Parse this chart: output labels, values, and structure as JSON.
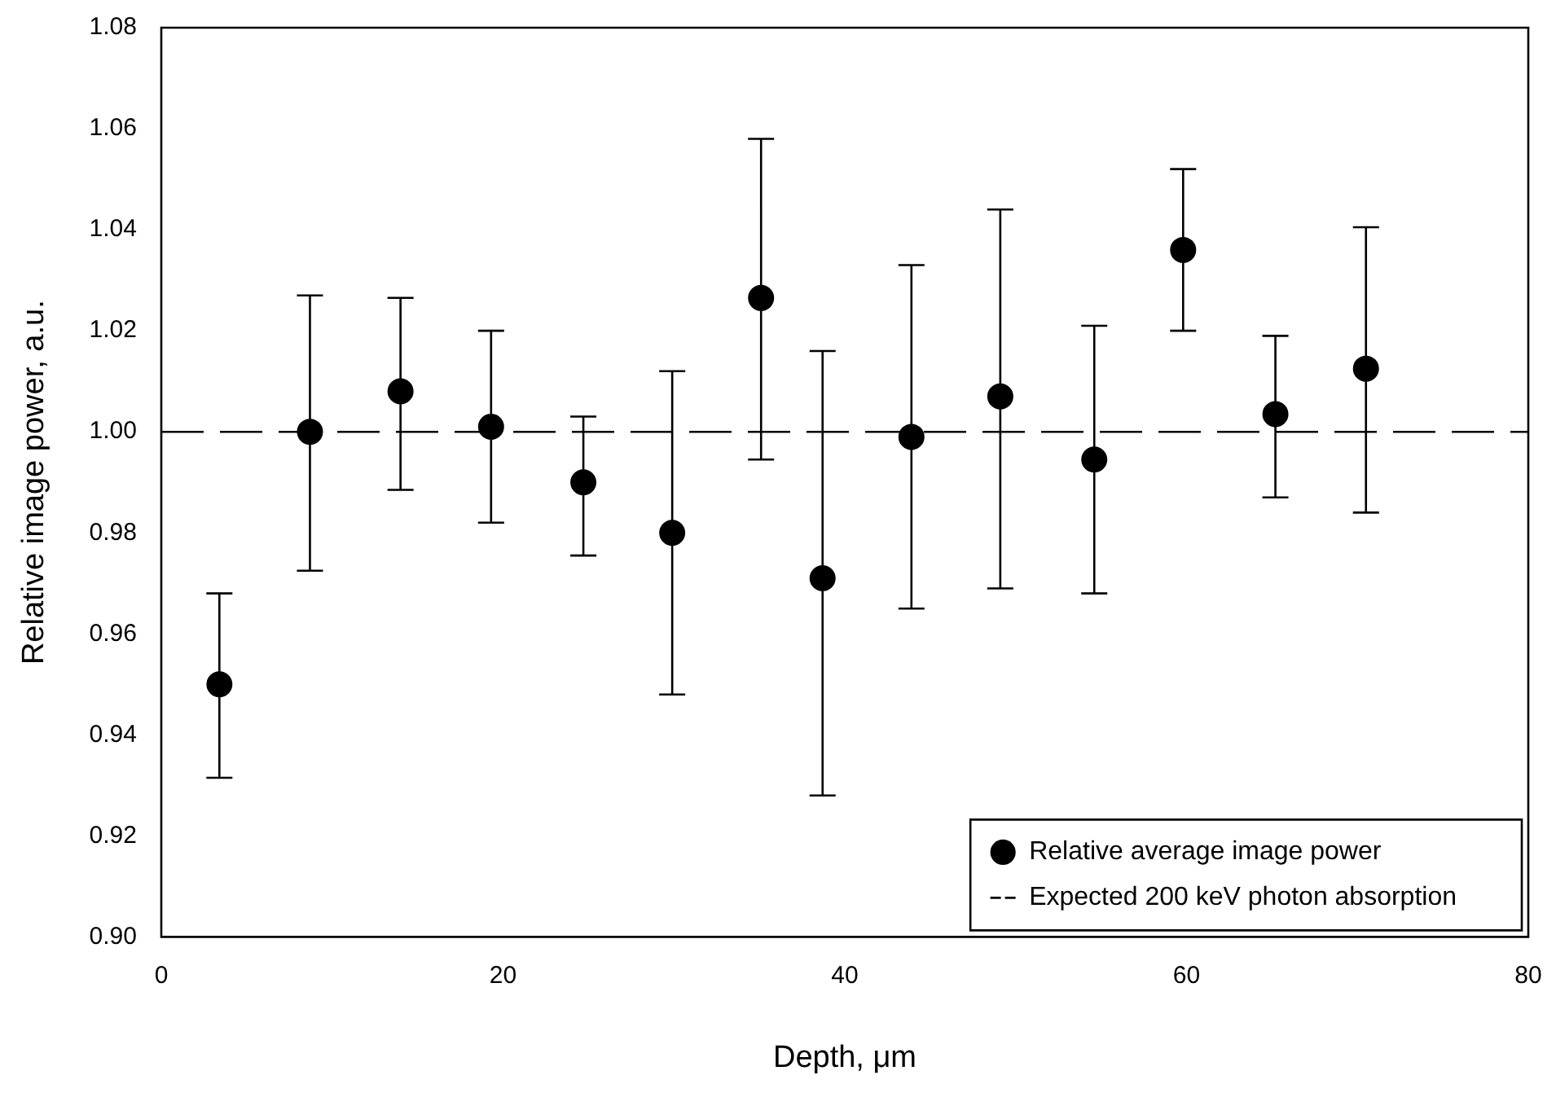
{
  "chart_data": {
    "type": "scatter",
    "xlabel": "Depth, μm",
    "ylabel": "Relative image power, a.u.",
    "xlim": [
      0,
      80
    ],
    "xticks": [
      0,
      20,
      40,
      60,
      80
    ],
    "ylim": [
      0.9,
      1.08
    ],
    "yticks": [
      {
        "value": 0.9,
        "label": "0.90"
      },
      {
        "value": 0.92,
        "label": "0.92"
      },
      {
        "value": 0.94,
        "label": "0.94"
      },
      {
        "value": 0.96,
        "label": "0.96"
      },
      {
        "value": 0.98,
        "label": "0.98"
      },
      {
        "value": 1.0,
        "label": "1.00"
      },
      {
        "value": 1.02,
        "label": "1.02"
      },
      {
        "value": 1.04,
        "label": "1.04"
      },
      {
        "value": 1.06,
        "label": "1.06"
      },
      {
        "value": 1.08,
        "label": "1.08"
      }
    ],
    "series": [
      {
        "name": "Relative average image power",
        "color": "#000000",
        "marker": "circle",
        "x": [
          3.4,
          8.7,
          14.0,
          19.3,
          24.7,
          29.9,
          35.1,
          38.7,
          43.9,
          49.1,
          54.6,
          59.8,
          65.2,
          70.5
        ],
        "values": [
          0.95,
          1.0,
          1.008,
          1.001,
          0.99,
          0.98,
          1.0265,
          0.971,
          0.999,
          1.007,
          0.9945,
          1.036,
          1.0035,
          1.0125
        ],
        "errors": [
          [
            0.9315,
            0.968
          ],
          [
            0.9725,
            1.027
          ],
          [
            0.9885,
            1.0265
          ],
          [
            0.982,
            1.02
          ],
          [
            0.9755,
            1.003
          ],
          [
            0.948,
            1.012
          ],
          [
            0.9945,
            1.058
          ],
          [
            0.928,
            1.016
          ],
          [
            0.965,
            1.033
          ],
          [
            0.969,
            1.044
          ],
          [
            0.968,
            1.021
          ],
          [
            1.02,
            1.052
          ],
          [
            0.987,
            1.019
          ],
          [
            0.984,
            1.0405
          ]
        ]
      }
    ],
    "ref_lines": [
      {
        "axis": "y",
        "value": 1.0,
        "label": "Expected 200 keV photon absorption",
        "color": "#000000",
        "line_style": "dashed"
      }
    ],
    "legend": "bottom right",
    "grid": false
  }
}
